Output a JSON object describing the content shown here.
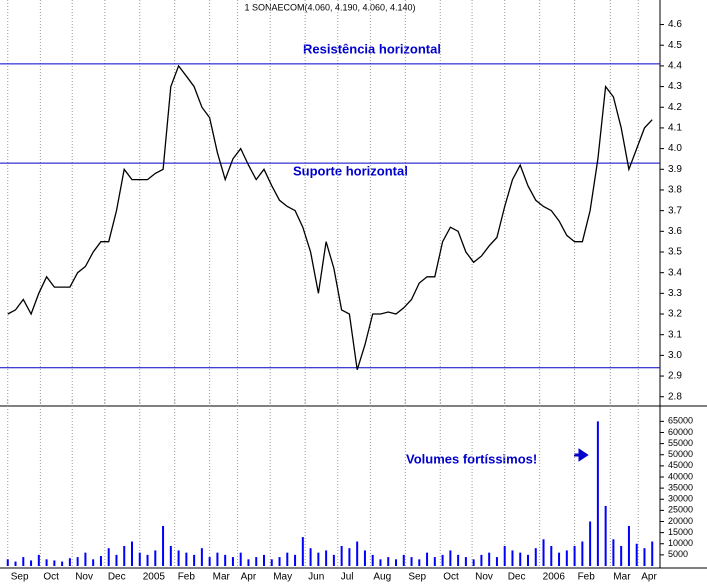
{
  "chart_data": [
    {
      "type": "line",
      "title": "1 SONAECOM(4.060, 4.190, 4.060, 4.140)",
      "x": [
        0,
        1,
        2,
        3,
        4,
        5,
        6,
        7,
        8,
        9,
        10,
        11,
        12,
        13,
        14,
        15,
        16,
        17,
        18,
        19,
        20,
        21,
        22,
        23,
        24,
        25,
        26,
        27,
        28,
        29,
        30,
        31,
        32,
        33,
        34,
        35,
        36,
        37,
        38,
        39,
        40,
        41,
        42,
        43,
        44,
        45,
        46,
        47,
        48,
        49,
        50,
        51,
        52,
        53,
        54,
        55,
        56,
        57,
        58,
        59,
        60,
        61,
        62,
        63,
        64,
        65,
        66,
        67,
        68,
        69,
        70,
        71,
        72,
        73,
        74,
        75,
        76,
        77,
        78,
        79,
        80,
        81,
        82,
        83
      ],
      "series": [
        {
          "color": "#000000",
          "values": [
            3.2,
            3.22,
            3.27,
            3.2,
            3.3,
            3.38,
            3.33,
            3.33,
            3.33,
            3.4,
            3.43,
            3.5,
            3.55,
            3.55,
            3.7,
            3.9,
            3.85,
            3.85,
            3.85,
            3.88,
            3.9,
            4.3,
            4.4,
            4.35,
            4.3,
            4.2,
            4.15,
            3.98,
            3.85,
            3.95,
            4.0,
            3.92,
            3.85,
            3.9,
            3.82,
            3.75,
            3.72,
            3.7,
            3.62,
            3.5,
            3.3,
            3.55,
            3.42,
            3.22,
            3.2,
            2.93,
            3.05,
            3.2,
            3.2,
            3.21,
            3.2,
            3.23,
            3.27,
            3.35,
            3.38,
            3.38,
            3.55,
            3.62,
            3.6,
            3.5,
            3.45,
            3.48,
            3.53,
            3.57,
            3.72,
            3.85,
            3.92,
            3.82,
            3.75,
            3.72,
            3.7,
            3.65,
            3.58,
            3.55,
            3.55,
            3.7,
            3.95,
            4.3,
            4.25,
            4.1,
            3.9,
            4.0,
            4.1,
            4.14
          ]
        }
      ],
      "xlim": [
        -1,
        84
      ],
      "xticks": [
        0,
        4.2,
        8.3,
        12.5,
        17,
        21.5,
        26,
        29.6,
        33.8,
        38.3,
        42.5,
        46.7,
        51.2,
        55.7,
        59.8,
        64,
        68.5,
        73,
        77.6,
        81.2
      ],
      "ylim": [
        2.76,
        4.68
      ],
      "yticks": [
        2.8,
        2.9,
        {
          "value": 3,
          "label": "3.0"
        },
        3.1,
        3.2,
        3.3,
        3.4,
        3.5,
        3.6,
        3.7,
        3.8,
        3.9,
        {
          "value": 4,
          "label": "4.0"
        },
        4.1,
        4.2,
        4.3,
        4.4,
        4.5,
        4.6
      ],
      "levels": [
        4.41,
        3.93,
        2.94
      ],
      "level_color": "#0000cc",
      "annotations": [
        "Resistência horizontal",
        "Suporte horizontal"
      ],
      "grid": true
    },
    {
      "type": "bar",
      "x": [
        0,
        1,
        2,
        3,
        4,
        5,
        6,
        7,
        8,
        9,
        10,
        11,
        12,
        13,
        14,
        15,
        16,
        17,
        18,
        19,
        20,
        21,
        22,
        23,
        24,
        25,
        26,
        27,
        28,
        29,
        30,
        31,
        32,
        33,
        34,
        35,
        36,
        37,
        38,
        39,
        40,
        41,
        42,
        43,
        44,
        45,
        46,
        47,
        48,
        49,
        50,
        51,
        52,
        53,
        54,
        55,
        56,
        57,
        58,
        59,
        60,
        61,
        62,
        63,
        64,
        65,
        66,
        67,
        68,
        69,
        70,
        71,
        72,
        73,
        74,
        75,
        76,
        77,
        78,
        79,
        80,
        81,
        82,
        83
      ],
      "series": [
        {
          "color": "#0000ff",
          "values": [
            3000,
            2000,
            4000,
            2500,
            5000,
            3000,
            2500,
            2000,
            3500,
            4000,
            6000,
            3000,
            4500,
            8000,
            5000,
            9000,
            11000,
            6000,
            5000,
            7000,
            18000,
            9000,
            7000,
            6000,
            5000,
            8000,
            4000,
            6000,
            5000,
            4000,
            6000,
            3000,
            4000,
            5000,
            3000,
            4000,
            6000,
            5000,
            13000,
            8000,
            6000,
            7000,
            5000,
            9000,
            8000,
            11000,
            7000,
            5000,
            3000,
            4000,
            3000,
            5000,
            4000,
            3000,
            6000,
            4000,
            5000,
            7000,
            5000,
            4000,
            3000,
            5000,
            6000,
            4000,
            9000,
            7000,
            6000,
            5000,
            8000,
            12000,
            9000,
            6000,
            7000,
            9000,
            11000,
            20000,
            65000,
            27000,
            12000,
            9000,
            18000,
            10000,
            8000,
            11000
          ]
        }
      ],
      "xlim": [
        -1,
        84
      ],
      "xticks": [
        {
          "value": 0,
          "label": "Sep"
        },
        {
          "value": 4.2,
          "label": "Oct"
        },
        {
          "value": 8.3,
          "label": "Nov"
        },
        {
          "value": 12.5,
          "label": "Dec"
        },
        {
          "value": 17,
          "label": "2005"
        },
        {
          "value": 21.5,
          "label": "Feb"
        },
        {
          "value": 26,
          "label": "Mar"
        },
        {
          "value": 29.6,
          "label": "Apr"
        },
        {
          "value": 33.8,
          "label": "May"
        },
        {
          "value": 38.3,
          "label": "Jun"
        },
        {
          "value": 42.5,
          "label": "Jul"
        },
        {
          "value": 46.7,
          "label": "Aug"
        },
        {
          "value": 51.2,
          "label": "Sep"
        },
        {
          "value": 55.7,
          "label": "Oct"
        },
        {
          "value": 59.8,
          "label": "Nov"
        },
        {
          "value": 64,
          "label": "Dec"
        },
        {
          "value": 68.5,
          "label": "2006"
        },
        {
          "value": 73,
          "label": "Feb"
        },
        {
          "value": 77.6,
          "label": "Mar"
        },
        {
          "value": 81.2,
          "label": "Apr"
        }
      ],
      "ylim": [
        0,
        71000
      ],
      "yticks": [
        5000,
        10000,
        15000,
        20000,
        25000,
        30000,
        35000,
        40000,
        45000,
        50000,
        55000,
        60000,
        65000
      ],
      "annotations": [
        "Volumes fortíssimos!"
      ],
      "grid": true
    }
  ]
}
